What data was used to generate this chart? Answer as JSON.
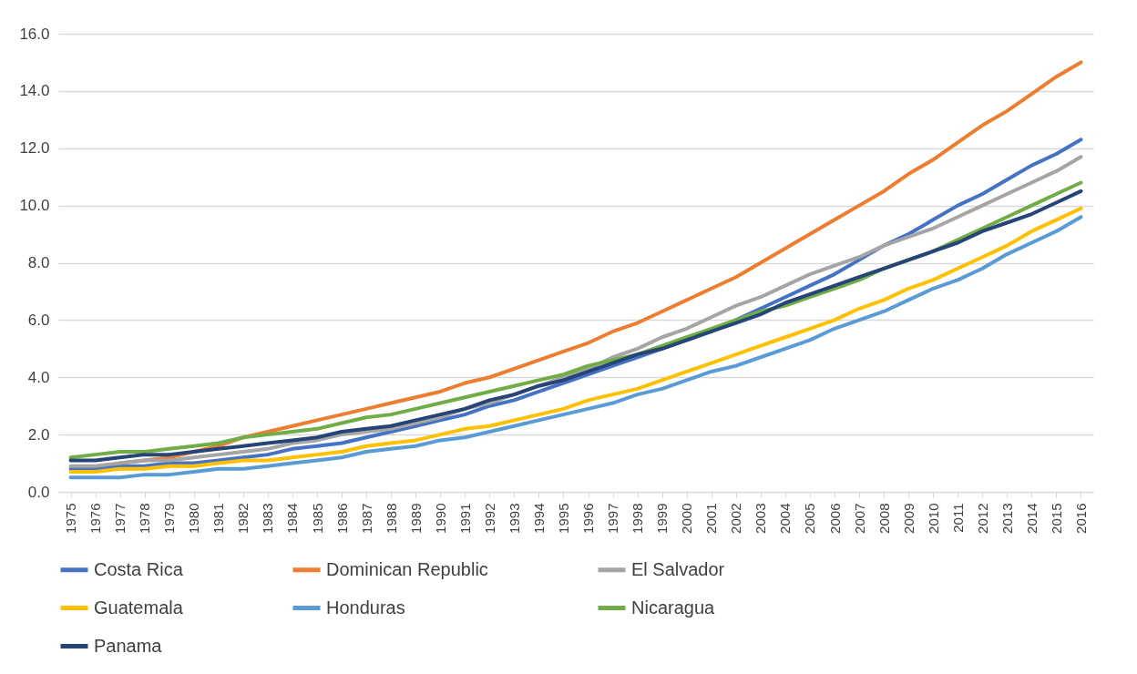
{
  "chart_data": {
    "type": "line",
    "categories": [
      "1975",
      "1976",
      "1977",
      "1978",
      "1979",
      "1980",
      "1981",
      "1982",
      "1983",
      "1984",
      "1985",
      "1986",
      "1987",
      "1988",
      "1989",
      "1990",
      "1991",
      "1992",
      "1993",
      "1994",
      "1995",
      "1996",
      "1997",
      "1998",
      "1999",
      "2000",
      "2001",
      "2002",
      "2003",
      "2004",
      "2005",
      "2006",
      "2007",
      "2008",
      "2009",
      "2010",
      "2011",
      "2012",
      "2013",
      "2014",
      "2015",
      "2016"
    ],
    "ylim": [
      0,
      16
    ],
    "yticks": [
      {
        "value": 0,
        "label": "0.0"
      },
      {
        "value": 2,
        "label": "2.0"
      },
      {
        "value": 4,
        "label": "4.0"
      },
      {
        "value": 6,
        "label": "6.0"
      },
      {
        "value": 8,
        "label": "8.0"
      },
      {
        "value": 10,
        "label": "10.0"
      },
      {
        "value": 12,
        "label": "12.0"
      },
      {
        "value": 14,
        "label": "14.0"
      },
      {
        "value": 16,
        "label": "16.0"
      }
    ],
    "grid": "y",
    "legend": "bottom",
    "marker": "none",
    "line_style": "solid",
    "series": [
      {
        "name": "Costa Rica",
        "color": "#4472c4",
        "values": [
          0.8,
          0.8,
          0.9,
          0.9,
          1.0,
          1.0,
          1.1,
          1.2,
          1.3,
          1.5,
          1.6,
          1.7,
          1.9,
          2.1,
          2.3,
          2.5,
          2.7,
          3.0,
          3.2,
          3.5,
          3.8,
          4.1,
          4.4,
          4.7,
          5.0,
          5.3,
          5.6,
          6.0,
          6.4,
          6.8,
          7.2,
          7.6,
          8.1,
          8.6,
          9.0,
          9.5,
          10.0,
          10.4,
          10.9,
          11.4,
          11.8,
          12.3
        ]
      },
      {
        "name": "Dominican Republic",
        "color": "#ed7d31",
        "values": [
          null,
          null,
          1.0,
          1.1,
          1.2,
          1.4,
          1.6,
          1.9,
          2.1,
          2.3,
          2.5,
          2.7,
          2.9,
          3.1,
          3.3,
          3.5,
          3.8,
          4.0,
          4.3,
          4.6,
          4.9,
          5.2,
          5.6,
          5.9,
          6.3,
          6.7,
          7.1,
          7.5,
          8.0,
          8.5,
          9.0,
          9.5,
          10.0,
          10.5,
          11.1,
          11.6,
          12.2,
          12.8,
          13.3,
          13.9,
          14.5,
          15.0
        ]
      },
      {
        "name": "El Salvador",
        "color": "#a5a5a5",
        "values": [
          0.9,
          0.9,
          1.0,
          1.1,
          1.1,
          1.2,
          1.3,
          1.4,
          1.5,
          1.7,
          1.8,
          2.0,
          2.1,
          2.2,
          2.4,
          2.6,
          2.9,
          3.1,
          3.4,
          3.7,
          4.0,
          4.3,
          4.7,
          5.0,
          5.4,
          5.7,
          6.1,
          6.5,
          6.8,
          7.2,
          7.6,
          7.9,
          8.2,
          8.6,
          8.9,
          9.2,
          9.6,
          10.0,
          10.4,
          10.8,
          11.2,
          11.7
        ]
      },
      {
        "name": "Guatemala",
        "color": "#ffc000",
        "values": [
          0.7,
          0.7,
          0.8,
          0.8,
          0.9,
          0.9,
          1.0,
          1.1,
          1.1,
          1.2,
          1.3,
          1.4,
          1.6,
          1.7,
          1.8,
          2.0,
          2.2,
          2.3,
          2.5,
          2.7,
          2.9,
          3.2,
          3.4,
          3.6,
          3.9,
          4.2,
          4.5,
          4.8,
          5.1,
          5.4,
          5.7,
          6.0,
          6.4,
          6.7,
          7.1,
          7.4,
          7.8,
          8.2,
          8.6,
          9.1,
          9.5,
          9.9
        ]
      },
      {
        "name": "Honduras",
        "color": "#5b9bd5",
        "values": [
          0.5,
          0.5,
          0.5,
          0.6,
          0.6,
          0.7,
          0.8,
          0.8,
          0.9,
          1.0,
          1.1,
          1.2,
          1.4,
          1.5,
          1.6,
          1.8,
          1.9,
          2.1,
          2.3,
          2.5,
          2.7,
          2.9,
          3.1,
          3.4,
          3.6,
          3.9,
          4.2,
          4.4,
          4.7,
          5.0,
          5.3,
          5.7,
          6.0,
          6.3,
          6.7,
          7.1,
          7.4,
          7.8,
          8.3,
          8.7,
          9.1,
          9.6
        ]
      },
      {
        "name": "Nicaragua",
        "color": "#70ad47",
        "values": [
          1.2,
          1.3,
          1.4,
          1.4,
          1.5,
          1.6,
          1.7,
          1.9,
          2.0,
          2.1,
          2.2,
          2.4,
          2.6,
          2.7,
          2.9,
          3.1,
          3.3,
          3.5,
          3.7,
          3.9,
          4.1,
          4.4,
          4.6,
          4.8,
          5.1,
          5.4,
          5.7,
          6.0,
          6.3,
          6.5,
          6.8,
          7.1,
          7.4,
          7.8,
          8.1,
          8.4,
          8.8,
          9.2,
          9.6,
          10.0,
          10.4,
          10.8
        ]
      },
      {
        "name": "Panama",
        "color": "#264478",
        "values": [
          1.1,
          1.1,
          1.2,
          1.3,
          1.3,
          1.4,
          1.5,
          1.6,
          1.7,
          1.8,
          1.9,
          2.1,
          2.2,
          2.3,
          2.5,
          2.7,
          2.9,
          3.2,
          3.4,
          3.7,
          3.9,
          4.2,
          4.5,
          4.8,
          5.0,
          5.3,
          5.6,
          5.9,
          6.2,
          6.6,
          6.9,
          7.2,
          7.5,
          7.8,
          8.1,
          8.4,
          8.7,
          9.1,
          9.4,
          9.7,
          10.1,
          10.5
        ]
      }
    ]
  }
}
